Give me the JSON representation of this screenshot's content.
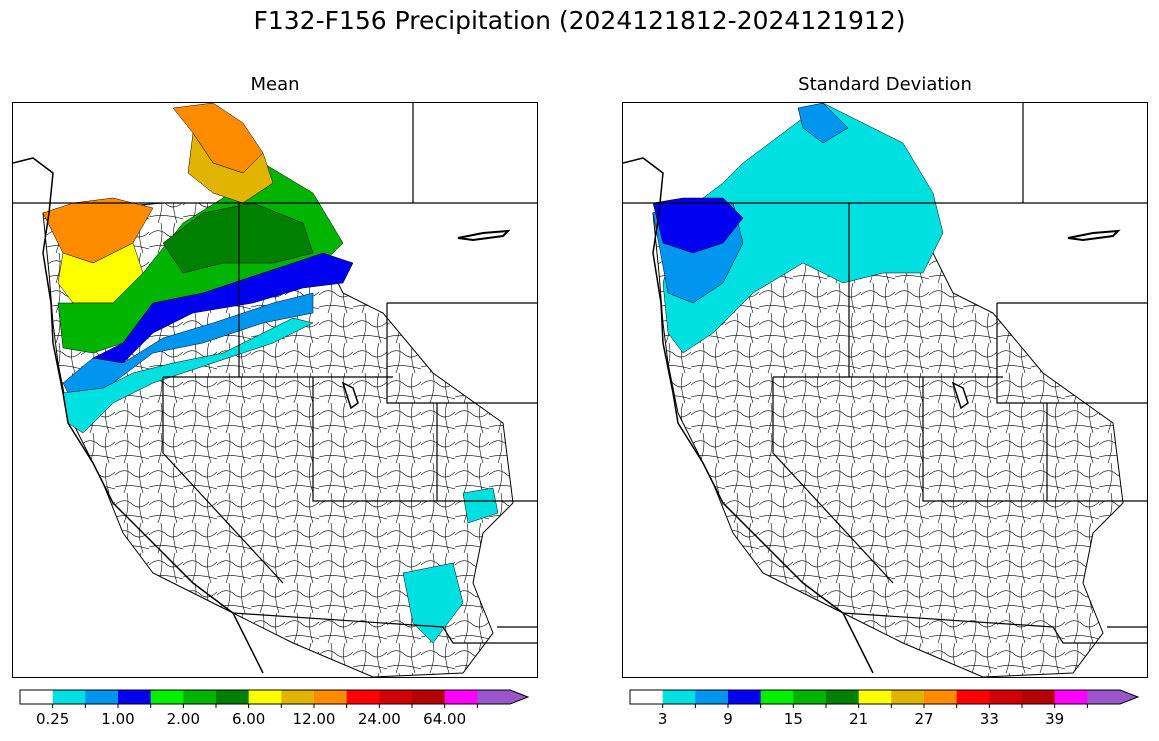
{
  "title": "F132-F156 Precipitation (2024121812-2024121912)",
  "panels": [
    {
      "id": "mean",
      "title": "Mean",
      "colorbar": {
        "colors": [
          "#ffffff",
          "#00e0e0",
          "#0096f0",
          "#0000f0",
          "#00f000",
          "#00b400",
          "#008000",
          "#ffff00",
          "#e0b400",
          "#ff8c00",
          "#ff0000",
          "#d20000",
          "#b40000",
          "#ff00ff",
          "#9955c9"
        ],
        "tick_labels": [
          "0.25",
          "1.00",
          "2.00",
          "6.00",
          "12.00",
          "24.00",
          "64.00"
        ],
        "extend": "max"
      }
    },
    {
      "id": "std",
      "title": "Standard Deviation",
      "colorbar": {
        "colors": [
          "#ffffff",
          "#00e0e0",
          "#0096f0",
          "#0000f0",
          "#00f000",
          "#00b400",
          "#008000",
          "#ffff00",
          "#e0b400",
          "#ff8c00",
          "#ff0000",
          "#d20000",
          "#b40000",
          "#ff00ff",
          "#9955c9"
        ],
        "tick_labels": [
          "3",
          "9",
          "15",
          "21",
          "27",
          "33",
          "39"
        ],
        "extend": "max"
      }
    }
  ]
}
